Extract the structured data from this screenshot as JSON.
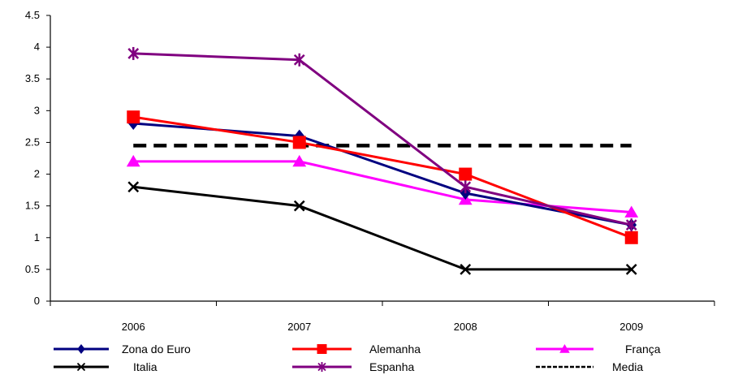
{
  "chart_data": {
    "type": "line",
    "title": "",
    "xlabel": "",
    "ylabel": "",
    "categories": [
      "2006",
      "2007",
      "2008",
      "2009"
    ],
    "ylim": [
      0,
      4.5
    ],
    "yticks": [
      "0",
      "0.5",
      "1",
      "1.5",
      "2",
      "2.5",
      "3",
      "3.5",
      "4",
      "4.5"
    ],
    "grid": false,
    "legend_position": "bottom",
    "series": [
      {
        "name": "Zona do Euro",
        "values": [
          2.8,
          2.6,
          1.7,
          1.2
        ],
        "color": "#000080",
        "marker": "diamond",
        "dashed": false
      },
      {
        "name": "Alemanha",
        "values": [
          2.9,
          2.5,
          2.0,
          1.0
        ],
        "color": "#ff0000",
        "marker": "square",
        "dashed": false
      },
      {
        "name": "França",
        "values": [
          2.2,
          2.2,
          1.6,
          1.4
        ],
        "color": "#ff00ff",
        "marker": "triangle",
        "dashed": false
      },
      {
        "name": "Italia",
        "values": [
          1.8,
          1.5,
          0.5,
          0.5
        ],
        "color": "#000000",
        "marker": "x",
        "dashed": false
      },
      {
        "name": "Espanha",
        "values": [
          3.9,
          3.8,
          1.8,
          1.2
        ],
        "color": "#800080",
        "marker": "star",
        "dashed": false
      },
      {
        "name": "Media",
        "values": [
          2.45,
          2.45,
          2.45,
          2.45
        ],
        "color": "#000000",
        "marker": "none",
        "dashed": true
      }
    ]
  }
}
